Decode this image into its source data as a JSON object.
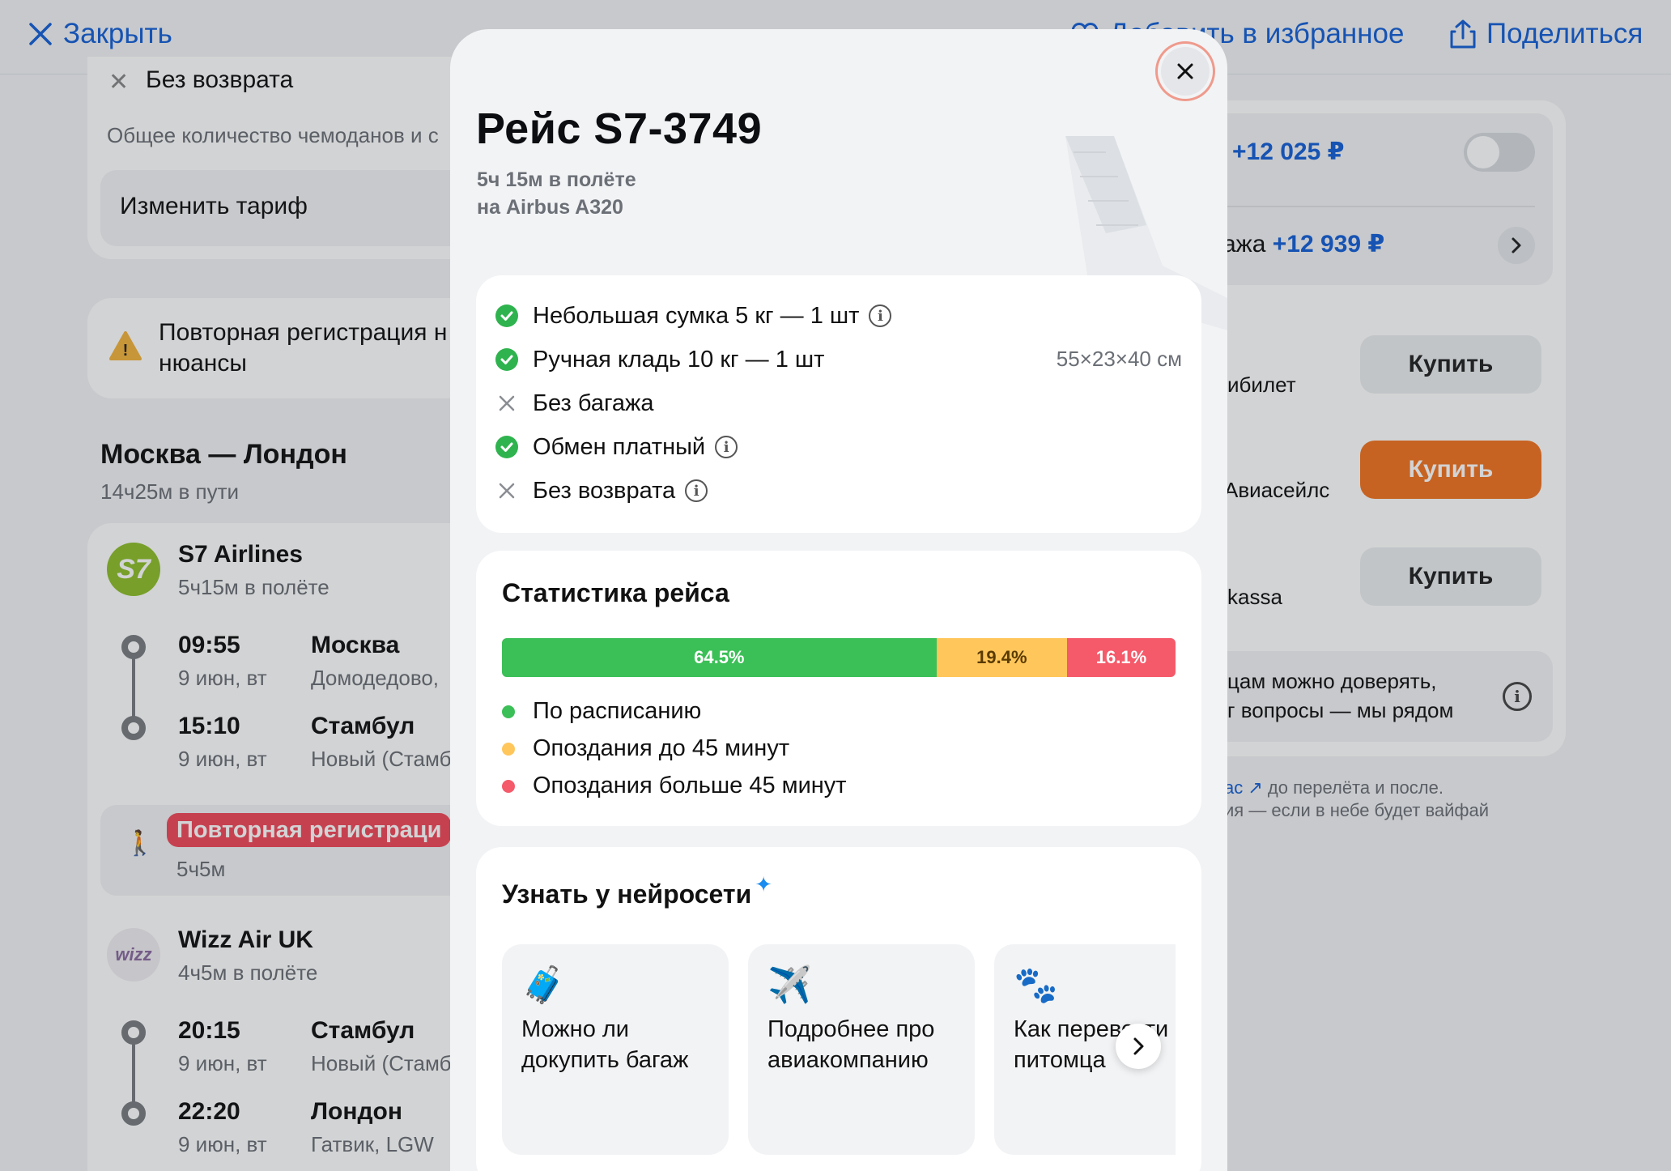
{
  "topbar": {
    "close_label": "Закрыть",
    "favorite_label": "Добавить в избранное",
    "share_label": "Поделиться"
  },
  "background": {
    "no_refund": "Без возврата",
    "baggage_note": "Общее количество чемоданов и с",
    "change_tariff": "Изменить тариф",
    "warning_text_1": "Повторная регистрация н",
    "warning_text_2": "нюансы",
    "route_title": "Москва — Лондон",
    "route_duration": "14ч25м в пути",
    "seg1": {
      "airline": "S7 Airlines",
      "duration": "5ч15м в полёте",
      "dep_time": "09:55",
      "dep_date": "9 июн, вт",
      "dep_city": "Москва",
      "dep_airport": "Домодедово,",
      "arr_time": "15:10",
      "arr_date": "9 июн, вт",
      "arr_city": "Стамбул",
      "arr_airport": "Новый (Стамб"
    },
    "transfer": {
      "badge": "Повторная регистраци",
      "duration": "5ч5м"
    },
    "seg2": {
      "airline": "Wizz Air UK",
      "duration": "4ч5м в полёте",
      "dep_time": "20:15",
      "dep_date": "9 июн, вт",
      "dep_city": "Стамбул",
      "dep_airport": "Новый (Стамб",
      "arr_time": "22:20",
      "arr_date": "9 июн, вт",
      "arr_city": "Лондон",
      "arr_airport": "Гатвик, LGW"
    },
    "right": {
      "option1_price": "+12 025 ₽",
      "option2_prefix": "ажа",
      "option2_price": "+12 939 ₽",
      "seller1": "ибилет",
      "seller2": "Авиасейлс",
      "seller3": "kassa",
      "buy_label": "Купить",
      "trust_1": "цам можно доверять,",
      "trust_2": "г вопросы — мы рядом",
      "support_1_link": "ас ↗",
      "support_1": "до перелёта и после.",
      "support_2": "ия — если в небе будет вайфай"
    }
  },
  "modal": {
    "title": "Рейс S7-3749",
    "flight_time": "5ч 15м в полёте",
    "aircraft": "на Airbus A320",
    "features": [
      {
        "label": "Небольшая сумка 5 кг — 1 шт",
        "included": true,
        "info": true
      },
      {
        "label": "Ручная кладь 10 кг — 1 шт",
        "included": true,
        "info": false,
        "dims": "55×23×40 см"
      },
      {
        "label": "Без багажа",
        "included": false,
        "info": false
      },
      {
        "label": "Обмен платный",
        "included": true,
        "info": true
      },
      {
        "label": "Без возврата",
        "included": false,
        "info": true
      }
    ],
    "stats": {
      "title": "Статистика рейса",
      "segments": [
        {
          "label": "64.5%",
          "value": 64.5,
          "color": "#3bbf57"
        },
        {
          "label": "19.4%",
          "value": 19.4,
          "color": "#ffc65c"
        },
        {
          "label": "16.1%",
          "value": 16.1,
          "color": "#f55a6a"
        }
      ],
      "legend": [
        {
          "label": "По расписанию",
          "color": "#3bbf57"
        },
        {
          "label": "Опоздания до 45 минут",
          "color": "#ffc65c"
        },
        {
          "label": "Опоздания больше 45 минут",
          "color": "#f55a6a"
        }
      ]
    },
    "ai": {
      "title": "Узнать у нейросети",
      "cards": [
        {
          "emoji": "🧳",
          "text": "Можно ли докупить багаж"
        },
        {
          "emoji": "✈️",
          "text": "Подробнее про авиакомпанию"
        },
        {
          "emoji": "🐾",
          "text": "Как перевезти питомца"
        }
      ]
    }
  }
}
